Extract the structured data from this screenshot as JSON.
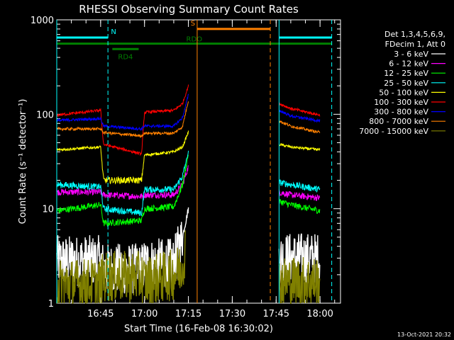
{
  "chart_data": {
    "type": "line",
    "title": "RHESSI Observing Summary Count Rates",
    "xlabel": "Start Time (16-Feb-08 16:30:02)",
    "ylabel": "Count Rate (s⁻¹ detector⁻¹)",
    "y_scale": "log",
    "ylim": [
      1,
      1000
    ],
    "xlim_minutes": [
      0,
      97
    ],
    "x_ticks": [
      {
        "label": "16:45",
        "minute": 15
      },
      {
        "label": "17:00",
        "minute": 30
      },
      {
        "label": "17:15",
        "minute": 45
      },
      {
        "label": "17:30",
        "minute": 60
      },
      {
        "label": "17:45",
        "minute": 75
      },
      {
        "label": "18:00",
        "minute": 90
      }
    ],
    "y_ticks": [
      {
        "label": "1",
        "value": 1
      },
      {
        "label": "10",
        "value": 10
      },
      {
        "label": "100",
        "value": 100
      },
      {
        "label": "1000",
        "value": 1000
      }
    ],
    "legend_header": [
      "Det 1,3,4,5,6,9,",
      "FDecim 1, Att 0"
    ],
    "legend_position": "right",
    "timestamp": "13-Oct-2021 20:32",
    "series": [
      {
        "name": "3 - 6 keV",
        "color": "#ffffff",
        "pre": [
          [
            0,
            2.8
          ],
          [
            15,
            2.8
          ],
          [
            16,
            2.3
          ],
          [
            29,
            2.3
          ],
          [
            30,
            2.6
          ],
          [
            40,
            2.6
          ],
          [
            43,
            5
          ],
          [
            45,
            10
          ]
        ],
        "post": [
          [
            76,
            3
          ],
          [
            90,
            3
          ]
        ]
      },
      {
        "name": "6 - 12 keV",
        "color": "#ff00ff",
        "pre": [
          [
            0,
            15
          ],
          [
            15,
            15
          ],
          [
            16,
            14
          ],
          [
            29,
            13.5
          ],
          [
            30,
            14
          ],
          [
            40,
            14
          ],
          [
            43,
            18
          ],
          [
            45,
            28
          ]
        ],
        "post": [
          [
            76,
            15
          ],
          [
            80,
            14
          ],
          [
            90,
            13
          ]
        ]
      },
      {
        "name": "12 - 25 keV",
        "color": "#00ff00",
        "pre": [
          [
            0,
            9.5
          ],
          [
            15,
            11
          ],
          [
            16,
            7
          ],
          [
            29,
            7.5
          ],
          [
            30,
            10
          ],
          [
            40,
            10.5
          ],
          [
            43,
            18
          ],
          [
            45,
            38
          ]
        ],
        "post": [
          [
            76,
            12
          ],
          [
            80,
            11
          ],
          [
            90,
            9.5
          ]
        ]
      },
      {
        "name": "25 - 50 keV",
        "color": "#00ffff",
        "pre": [
          [
            0,
            18
          ],
          [
            15,
            17
          ],
          [
            16,
            10
          ],
          [
            29,
            9
          ],
          [
            30,
            16
          ],
          [
            40,
            16
          ],
          [
            43,
            22
          ],
          [
            45,
            40
          ]
        ],
        "post": [
          [
            76,
            19
          ],
          [
            80,
            18
          ],
          [
            90,
            16
          ]
        ]
      },
      {
        "name": "50 - 100 keV",
        "color": "#ffff00",
        "pre": [
          [
            0,
            42
          ],
          [
            15,
            45
          ],
          [
            16,
            20
          ],
          [
            29,
            20
          ],
          [
            30,
            37
          ],
          [
            40,
            40
          ],
          [
            43,
            45
          ],
          [
            45,
            65
          ]
        ],
        "post": [
          [
            76,
            48
          ],
          [
            80,
            45
          ],
          [
            90,
            42
          ]
        ]
      },
      {
        "name": "100 - 300 keV",
        "color": "#ff0000",
        "pre": [
          [
            0,
            98
          ],
          [
            15,
            110
          ],
          [
            16,
            48
          ],
          [
            29,
            38
          ],
          [
            30,
            105
          ],
          [
            40,
            110
          ],
          [
            43,
            130
          ],
          [
            45,
            200
          ]
        ],
        "post": [
          [
            76,
            130
          ],
          [
            80,
            115
          ],
          [
            90,
            98
          ]
        ]
      },
      {
        "name": "300 - 800 keV",
        "color": "#0000ff",
        "pre": [
          [
            0,
            86
          ],
          [
            15,
            90
          ],
          [
            16,
            75
          ],
          [
            29,
            70
          ],
          [
            30,
            75
          ],
          [
            40,
            75
          ],
          [
            43,
            92
          ],
          [
            45,
            160
          ]
        ],
        "post": [
          [
            76,
            110
          ],
          [
            80,
            96
          ],
          [
            90,
            85
          ]
        ]
      },
      {
        "name": "800 - 7000 keV",
        "color": "#ff8000",
        "pre": [
          [
            0,
            70
          ],
          [
            15,
            70
          ],
          [
            16,
            64
          ],
          [
            29,
            59
          ],
          [
            30,
            63
          ],
          [
            40,
            63
          ],
          [
            43,
            74
          ],
          [
            45,
            140
          ]
        ],
        "post": [
          [
            76,
            85
          ],
          [
            80,
            75
          ],
          [
            90,
            64
          ]
        ]
      },
      {
        "name": "7000 - 15000 keV",
        "color": "#808000",
        "pre": [
          [
            0,
            1.6
          ],
          [
            15,
            1.6
          ],
          [
            16,
            1.9
          ],
          [
            29,
            1.9
          ],
          [
            30,
            1.7
          ],
          [
            40,
            2
          ],
          [
            43,
            2.5
          ],
          [
            44,
            4
          ]
        ],
        "post": [
          [
            76,
            1.7
          ],
          [
            90,
            1.7
          ]
        ]
      }
    ],
    "annotations": [
      {
        "label": "N",
        "color": "#00ffff",
        "start_minute": 0,
        "end_minute": 17.5,
        "level": 650
      },
      {
        "label": "",
        "color": "#00ffff",
        "start_minute": 76,
        "end_minute": 94,
        "level": 650
      },
      {
        "label": "RD4",
        "color": "#008000",
        "start_minute": 19,
        "end_minute": 28,
        "level": 490
      },
      {
        "label": "RDO",
        "color": "#008000",
        "start_minute": 0,
        "end_minute": 94,
        "level": 560
      },
      {
        "label": "S",
        "color": "#ff8000",
        "start_minute": 48,
        "end_minute": 73,
        "level": 800
      }
    ],
    "vertical_markers": [
      {
        "minute": 0,
        "color": "#00ffff",
        "style": "solid"
      },
      {
        "minute": 17.5,
        "color": "#00ffff",
        "style": "dashed"
      },
      {
        "minute": 48,
        "color": "#ff8000",
        "style": "solid"
      },
      {
        "minute": 73,
        "color": "#ff8000",
        "style": "dashed"
      },
      {
        "minute": 76,
        "color": "#00ffff",
        "style": "solid"
      },
      {
        "minute": 94,
        "color": "#00ffff",
        "style": "dashed"
      }
    ],
    "grid": false
  }
}
